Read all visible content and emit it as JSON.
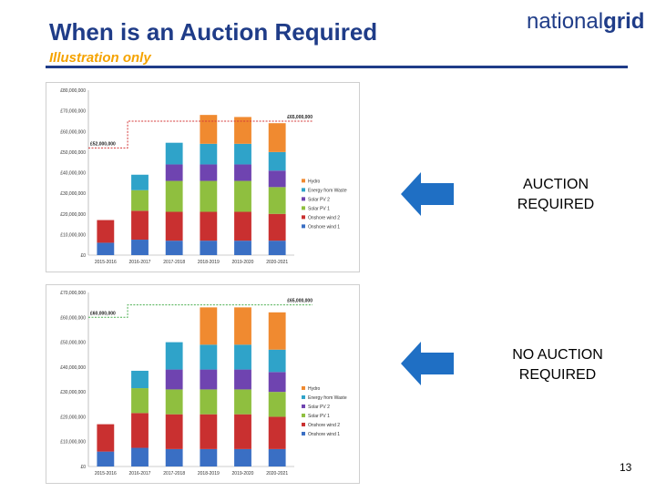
{
  "slide": {
    "title": "When is an Auction Required",
    "subtitle": "Illustration only",
    "logo_part1": "national",
    "logo_part2": "grid",
    "page_number": "13"
  },
  "callouts": [
    {
      "line1": "AUCTION",
      "line2": "REQUIRED"
    },
    {
      "line1": "NO AUCTION",
      "line2": "REQUIRED"
    }
  ],
  "colors": {
    "Onshore wind 1": "#3a6fc4",
    "Onshore wind 2": "#c93030",
    "Solar PV 1": "#8fbf3f",
    "Solar PV 2": "#6f44b0",
    "Energy from Waste": "#2fa3c9",
    "Hydro": "#f08a30",
    "threshold": "#d43a3a",
    "threshold2": "#4caf50",
    "arrow": "#1f6fc4"
  },
  "chart_data": [
    {
      "type": "bar",
      "stacked": true,
      "categories": [
        "2015-2016",
        "2016-2017",
        "2017-2018",
        "2018-2019",
        "2019-2020",
        "2020-2021"
      ],
      "series": [
        {
          "name": "Onshore wind 1",
          "values": [
            6000000,
            7500000,
            7000000,
            7000000,
            7000000,
            7000000
          ]
        },
        {
          "name": "Onshore wind 2",
          "values": [
            11000000,
            14000000,
            14000000,
            14000000,
            14000000,
            13000000
          ]
        },
        {
          "name": "Solar PV 1",
          "values": [
            0,
            10000000,
            15000000,
            15000000,
            15000000,
            13000000
          ]
        },
        {
          "name": "Solar PV 2",
          "values": [
            0,
            0,
            8000000,
            8000000,
            8000000,
            8000000
          ]
        },
        {
          "name": "Energy from Waste",
          "values": [
            0,
            7500000,
            10500000,
            10000000,
            10000000,
            9000000
          ]
        },
        {
          "name": "Hydro",
          "values": [
            0,
            0,
            0,
            14000000,
            13000000,
            14000000
          ]
        }
      ],
      "yticks": [
        "£0",
        "£10,000,000",
        "£20,000,000",
        "£30,000,000",
        "£40,000,000",
        "£50,000,000",
        "£60,000,000",
        "£70,000,000",
        "£80,000,000"
      ],
      "ylim": [
        0,
        80000000
      ],
      "threshold": {
        "from_value": 52000000,
        "to_value": 65000000,
        "label_left": "£52,000,000",
        "label_right": "£65,000,000"
      },
      "legend_position": "right",
      "legend": [
        "Hydro",
        "Energy from Waste",
        "Solar PV 2",
        "Solar PV 1",
        "Onshore wind 2",
        "Onshore wind 1"
      ]
    },
    {
      "type": "bar",
      "stacked": true,
      "categories": [
        "2015-2016",
        "2016-2017",
        "2017-2018",
        "2018-2019",
        "2019-2020",
        "2020-2021"
      ],
      "series": [
        {
          "name": "Onshore wind 1",
          "values": [
            6000000,
            7500000,
            7000000,
            7000000,
            7000000,
            7000000
          ]
        },
        {
          "name": "Onshore wind 2",
          "values": [
            11000000,
            14000000,
            14000000,
            14000000,
            14000000,
            13000000
          ]
        },
        {
          "name": "Solar PV 1",
          "values": [
            0,
            10000000,
            10000000,
            10000000,
            10000000,
            10000000
          ]
        },
        {
          "name": "Solar PV 2",
          "values": [
            0,
            0,
            8000000,
            8000000,
            8000000,
            8000000
          ]
        },
        {
          "name": "Energy from Waste",
          "values": [
            0,
            7000000,
            11000000,
            10000000,
            10000000,
            9000000
          ]
        },
        {
          "name": "Hydro",
          "values": [
            0,
            0,
            0,
            15000000,
            15000000,
            15000000
          ]
        }
      ],
      "yticks": [
        "£0",
        "£10,000,000",
        "£20,000,000",
        "£30,000,000",
        "£40,000,000",
        "£50,000,000",
        "£60,000,000",
        "£70,000,000"
      ],
      "ylim": [
        0,
        70000000
      ],
      "threshold": {
        "from_value": 60000000,
        "to_value": 65000000,
        "label_left": "£60,000,000",
        "label_right": "£65,000,000"
      },
      "legend_position": "right",
      "legend": [
        "Hydro",
        "Energy from Waste",
        "Solar PV 2",
        "Solar PV 1",
        "Onshore wind 2",
        "Onshore wind 1"
      ]
    }
  ]
}
